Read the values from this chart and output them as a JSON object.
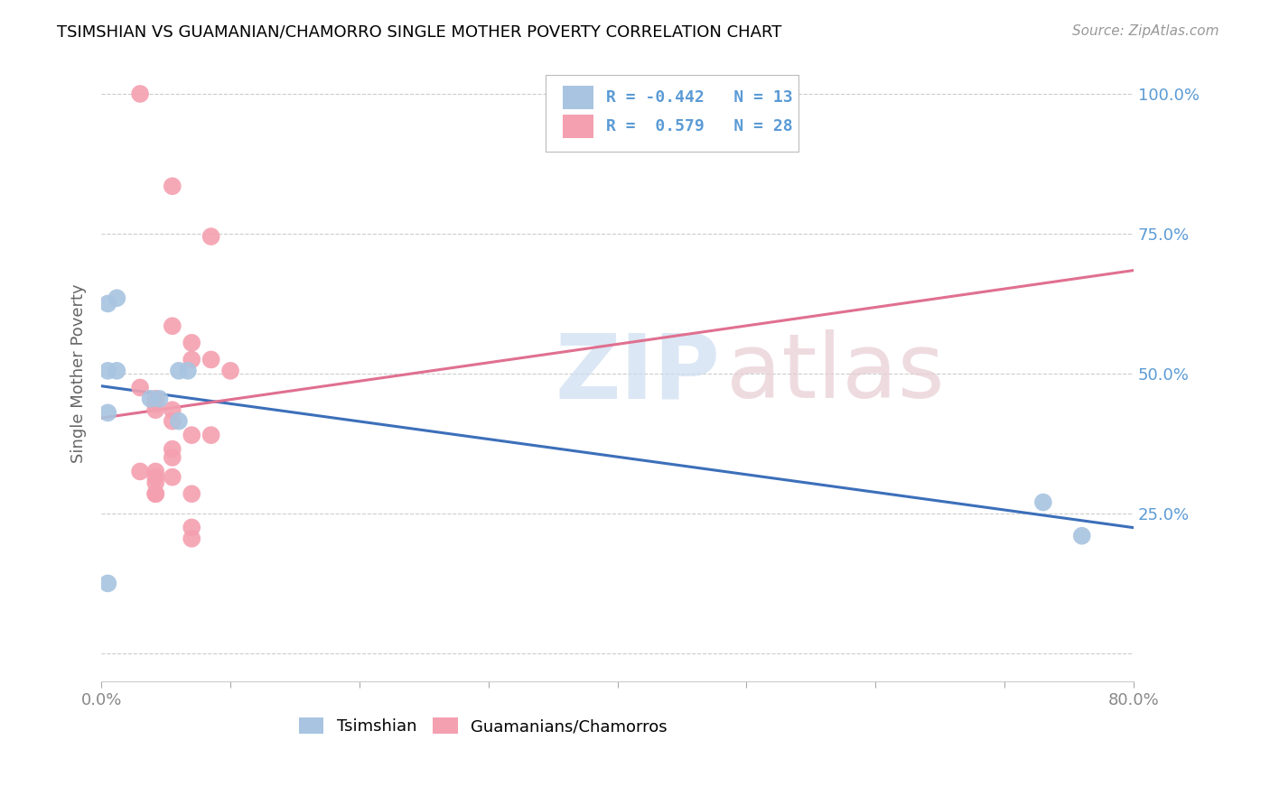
{
  "title": "TSIMSHIAN VS GUAMANIAN/CHAMORRO SINGLE MOTHER POVERTY CORRELATION CHART",
  "source": "Source: ZipAtlas.com",
  "ylabel": "Single Mother Poverty",
  "y_ticks": [
    0.0,
    0.25,
    0.5,
    0.75,
    1.0
  ],
  "y_tick_labels": [
    "",
    "25.0%",
    "50.0%",
    "75.0%",
    "100.0%"
  ],
  "x_ticks": [
    0.0,
    0.1,
    0.2,
    0.3,
    0.4,
    0.5,
    0.6,
    0.7,
    0.8
  ],
  "x_tick_labels_show": [
    "0.0%",
    "",
    "",
    "",
    "",
    "",
    "",
    "",
    "80.0%"
  ],
  "xlim": [
    0.0,
    0.8
  ],
  "ylim": [
    -0.05,
    1.05
  ],
  "legend_entries": [
    {
      "label_r": "-0.442",
      "label_n": "13",
      "color": "#a8c4e0"
    },
    {
      "label_r": "0.579",
      "label_n": "28",
      "color": "#f4a0b0"
    }
  ],
  "tsimshian_scatter": [
    [
      0.005,
      0.625
    ],
    [
      0.012,
      0.635
    ],
    [
      0.005,
      0.505
    ],
    [
      0.012,
      0.505
    ],
    [
      0.06,
      0.505
    ],
    [
      0.067,
      0.505
    ],
    [
      0.005,
      0.43
    ],
    [
      0.038,
      0.455
    ],
    [
      0.045,
      0.455
    ],
    [
      0.06,
      0.415
    ],
    [
      0.73,
      0.27
    ],
    [
      0.76,
      0.21
    ],
    [
      0.005,
      0.125
    ]
  ],
  "guamanian_scatter": [
    [
      0.03,
      1.0
    ],
    [
      0.055,
      0.835
    ],
    [
      0.085,
      0.745
    ],
    [
      0.055,
      0.585
    ],
    [
      0.07,
      0.555
    ],
    [
      0.07,
      0.525
    ],
    [
      0.085,
      0.525
    ],
    [
      0.1,
      0.505
    ],
    [
      0.03,
      0.475
    ],
    [
      0.042,
      0.455
    ],
    [
      0.042,
      0.445
    ],
    [
      0.042,
      0.435
    ],
    [
      0.055,
      0.435
    ],
    [
      0.055,
      0.415
    ],
    [
      0.07,
      0.39
    ],
    [
      0.085,
      0.39
    ],
    [
      0.055,
      0.365
    ],
    [
      0.055,
      0.35
    ],
    [
      0.03,
      0.325
    ],
    [
      0.042,
      0.325
    ],
    [
      0.042,
      0.315
    ],
    [
      0.055,
      0.315
    ],
    [
      0.042,
      0.305
    ],
    [
      0.042,
      0.285
    ],
    [
      0.042,
      0.285
    ],
    [
      0.07,
      0.285
    ],
    [
      0.07,
      0.225
    ],
    [
      0.07,
      0.205
    ]
  ],
  "tsimshian_color": "#a8c4e0",
  "guamanian_color": "#f4a0b0",
  "tsimshian_line_color": "#3c6fba",
  "guamanian_line_color": "#e07090",
  "background_color": "#ffffff",
  "grid_color": "#cccccc",
  "right_tick_color": "#5b9bd5",
  "bottom_tick_color": "#888888"
}
